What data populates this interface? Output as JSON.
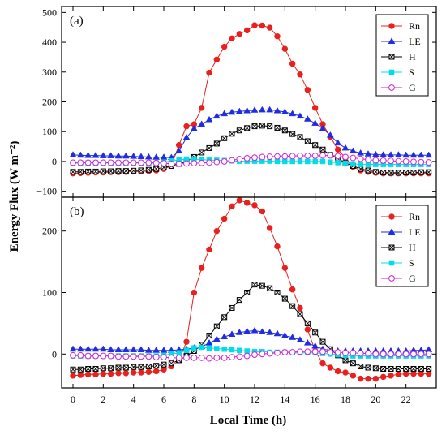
{
  "chart_data": {
    "type": "line",
    "ylabel": "Energy Flux (W m⁻²)",
    "xlabel": "Local Time (h)",
    "x": [
      0,
      0.5,
      1,
      1.5,
      2,
      2.5,
      3,
      3.5,
      4,
      4.5,
      5,
      5.5,
      6,
      6.5,
      7,
      7.5,
      8,
      8.5,
      9,
      9.5,
      10,
      10.5,
      11,
      11.5,
      12,
      12.5,
      13,
      13.5,
      14,
      14.5,
      15,
      15.5,
      16,
      16.5,
      17,
      17.5,
      18,
      18.5,
      19,
      19.5,
      20,
      20.5,
      21,
      21.5,
      22,
      22.5,
      23,
      23.5
    ],
    "xlim": [
      -0.75,
      24
    ],
    "xticks": [
      0,
      2,
      4,
      6,
      8,
      10,
      12,
      14,
      16,
      18,
      20,
      22
    ],
    "xtick_labels": [
      "0",
      "2",
      "4",
      "6",
      "8",
      "10",
      "12",
      "14",
      "16",
      "18",
      "20",
      "22"
    ],
    "panels": [
      {
        "label": "(a)",
        "ylim": [
          -120,
          520
        ],
        "yticks": [
          -100,
          0,
          100,
          200,
          300,
          400,
          500
        ],
        "ytick_labels": [
          "−100",
          "0",
          "100",
          "200",
          "300",
          "400",
          "500"
        ],
        "legend_position": "top-right",
        "series": [
          {
            "name": "Rn",
            "color": "#e8201e",
            "marker": "circle",
            "values": [
              -40,
              -39,
              -38,
              -37,
              -37,
              -36,
              -36,
              -35,
              -34,
              -33,
              -32,
              -30,
              -25,
              -15,
              55,
              118,
              125,
              180,
              298,
              342,
              385,
              413,
              428,
              440,
              457,
              456,
              449,
              420,
              378,
              328,
              292,
              240,
              180,
              125,
              83,
              40,
              12,
              -18,
              -30,
              -35,
              -38,
              -40,
              -40,
              -40,
              -40,
              -40,
              -40,
              -40
            ]
          },
          {
            "name": "LE",
            "color": "#1f2de0",
            "marker": "triangle",
            "values": [
              22,
              21,
              20,
              20,
              19,
              19,
              18,
              18,
              17,
              16,
              15,
              14,
              14,
              13,
              35,
              80,
              110,
              125,
              140,
              152,
              160,
              165,
              168,
              170,
              172,
              173,
              173,
              170,
              166,
              160,
              152,
              142,
              128,
              110,
              88,
              62,
              45,
              35,
              28,
              25,
              23,
              22,
              22,
              22,
              21,
              21,
              21,
              21
            ]
          },
          {
            "name": "H",
            "color": "#000000",
            "marker": "xbox",
            "values": [
              -35,
              -35,
              -34,
              -34,
              -33,
              -33,
              -32,
              -32,
              -31,
              -30,
              -28,
              -25,
              -20,
              -15,
              -8,
              0,
              15,
              30,
              45,
              60,
              78,
              93,
              104,
              112,
              118,
              120,
              118,
              113,
              104,
              92,
              82,
              68,
              55,
              40,
              22,
              10,
              -5,
              -15,
              -25,
              -30,
              -35,
              -37,
              -38,
              -38,
              -37,
              -37,
              -36,
              -36
            ]
          },
          {
            "name": "S",
            "color": "#00dde8",
            "marker": "square",
            "values": [
              -5,
              -5,
              -5,
              -5,
              -5,
              -5,
              -5,
              -5,
              -5,
              -5,
              -5,
              -5,
              -2,
              2,
              5,
              8,
              8,
              6,
              5,
              4,
              3,
              2,
              1,
              1,
              1,
              1,
              1,
              0,
              0,
              0,
              0,
              0,
              0,
              0,
              -2,
              -4,
              -6,
              -8,
              -10,
              -10,
              -10,
              -10,
              -10,
              -10,
              -10,
              -10,
              -10,
              -10
            ]
          },
          {
            "name": "G",
            "color": "#d422d4",
            "marker": "open-circle",
            "values": [
              -4,
              -4,
              -4,
              -4,
              -4,
              -4,
              -4,
              -4,
              -4,
              -4,
              -4,
              -5,
              -6,
              -8,
              -8,
              -7,
              -6,
              -5,
              -4,
              -2,
              0,
              4,
              8,
              11,
              13,
              15,
              16,
              17,
              17,
              18,
              19,
              19,
              19,
              20,
              20,
              18,
              15,
              12,
              9,
              6,
              4,
              3,
              2,
              1,
              0,
              -1,
              -2,
              -3
            ]
          }
        ]
      },
      {
        "label": "(b)",
        "ylim": [
          -55,
          255
        ],
        "yticks": [
          0,
          100,
          200
        ],
        "ytick_labels": [
          "0",
          "100",
          "200"
        ],
        "legend_position": "top-right",
        "series": [
          {
            "name": "Rn",
            "color": "#e8201e",
            "marker": "circle",
            "values": [
              -35,
              -34,
              -33,
              -33,
              -32,
              -32,
              -31,
              -31,
              -30,
              -30,
              -29,
              -28,
              -25,
              -20,
              -10,
              20,
              100,
              140,
              170,
              200,
              220,
              240,
              250,
              246,
              242,
              232,
              205,
              175,
              140,
              105,
              75,
              40,
              5,
              -15,
              -22,
              -28,
              -30,
              -35,
              -40,
              -40,
              -40,
              -37,
              -35,
              -33,
              -32,
              -32,
              -32,
              -32
            ]
          },
          {
            "name": "LE",
            "color": "#1f2de0",
            "marker": "triangle",
            "values": [
              8,
              8,
              8,
              8,
              8,
              7,
              7,
              7,
              7,
              7,
              6,
              6,
              6,
              6,
              7,
              8,
              10,
              12,
              18,
              24,
              28,
              32,
              35,
              37,
              38,
              36,
              35,
              33,
              30,
              27,
              23,
              18,
              13,
              8,
              6,
              5,
              5,
              5,
              5,
              5,
              5,
              5,
              5,
              5,
              5,
              6,
              6,
              7
            ]
          },
          {
            "name": "H",
            "color": "#000000",
            "marker": "xbox",
            "values": [
              -25,
              -25,
              -24,
              -24,
              -23,
              -23,
              -22,
              -22,
              -21,
              -21,
              -20,
              -19,
              -17,
              -15,
              -10,
              -3,
              5,
              15,
              30,
              45,
              60,
              75,
              88,
              100,
              113,
              111,
              107,
              100,
              90,
              78,
              65,
              50,
              35,
              20,
              8,
              -2,
              -10,
              -15,
              -20,
              -22,
              -23,
              -24,
              -24,
              -24,
              -24,
              -24,
              -24,
              -24
            ]
          },
          {
            "name": "S",
            "color": "#00dde8",
            "marker": "square",
            "values": [
              -3,
              -3,
              -3,
              -3,
              -3,
              -3,
              -3,
              -3,
              -3,
              -3,
              -3,
              -3,
              -2,
              0,
              2,
              6,
              10,
              11,
              10,
              9,
              8,
              7,
              6,
              5,
              4,
              4,
              3,
              3,
              3,
              2,
              2,
              2,
              2,
              1,
              0,
              -1,
              -2,
              -3,
              -3,
              -3,
              -3,
              -3,
              -3,
              -3,
              -3,
              -3,
              -3,
              -3
            ]
          },
          {
            "name": "G",
            "color": "#d422d4",
            "marker": "open-circle",
            "values": [
              -2,
              -2,
              -3,
              -3,
              -3,
              -3,
              -4,
              -4,
              -4,
              -4,
              -4,
              -5,
              -5,
              -6,
              -6,
              -6,
              -6,
              -6,
              -7,
              -6,
              -6,
              -5,
              -4,
              -3,
              -1,
              0,
              1,
              2,
              3,
              3,
              4,
              4,
              4,
              4,
              3,
              3,
              2,
              2,
              1,
              1,
              0,
              0,
              0,
              0,
              0,
              0,
              0,
              0
            ]
          }
        ]
      }
    ]
  }
}
